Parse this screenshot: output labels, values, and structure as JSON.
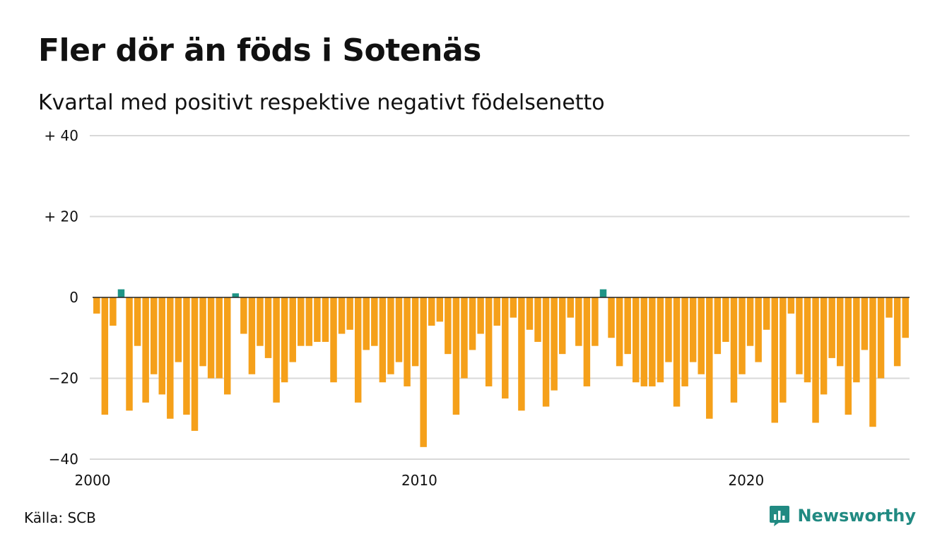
{
  "title": "Fler dör än föds i Sotenäs",
  "subtitle": "Kvartal med positivt respektive negativt födelsenetto",
  "source": "Källa: SCB",
  "brand": "Newsworthy",
  "colors": {
    "positive": "#1e9486",
    "negative": "#f5a01a",
    "grid": "#d9d9d9",
    "zero_line": "#222222",
    "brand": "#218a82"
  },
  "icons": {
    "brand": "newsworthy-logo-icon"
  },
  "chart_data": {
    "type": "bar",
    "x_start": 2000,
    "x_step": 0.25,
    "xticks": [
      2000,
      2010,
      2020
    ],
    "xtick_labels": [
      "2000",
      "2010",
      "2020"
    ],
    "ylim": [
      -40,
      40
    ],
    "yticks": [
      40,
      20,
      0,
      -20,
      -40
    ],
    "ytick_labels": [
      "+ 40",
      "+ 20",
      "0",
      "−20",
      "−40"
    ],
    "grid": true,
    "values": [
      -4,
      -29,
      -7,
      2,
      -28,
      -12,
      -26,
      -19,
      -24,
      -30,
      -16,
      -29,
      -33,
      -17,
      -20,
      -20,
      -24,
      1,
      -9,
      -19,
      -12,
      -15,
      -26,
      -21,
      -16,
      -12,
      -12,
      -11,
      -11,
      -21,
      -9,
      -8,
      -26,
      -13,
      -12,
      -21,
      -19,
      -16,
      -22,
      -17,
      -37,
      -7,
      -6,
      -14,
      -29,
      -20,
      -13,
      -9,
      -22,
      -7,
      -25,
      -5,
      -28,
      -8,
      -11,
      -27,
      -23,
      -14,
      -5,
      -12,
      -22,
      -12,
      2,
      -10,
      -17,
      -14,
      -21,
      -22,
      -22,
      -21,
      -16,
      -27,
      -22,
      -16,
      -19,
      -30,
      -14,
      -11,
      -26,
      -19,
      -12,
      -16,
      -8,
      -31,
      -26,
      -4,
      -19,
      -21,
      -31,
      -24,
      -15,
      -17,
      -29,
      -21,
      -13,
      -32,
      -20,
      -5,
      -17,
      -10
    ]
  }
}
